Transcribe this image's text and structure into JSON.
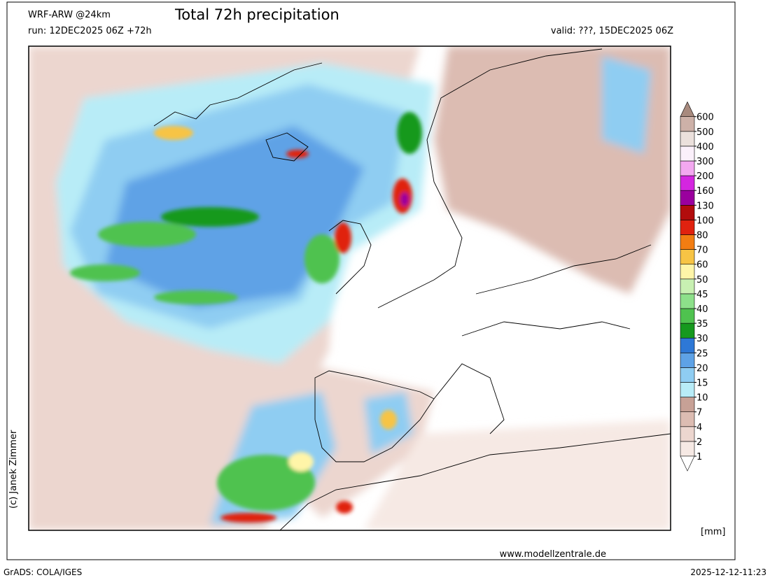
{
  "header": {
    "model": "WRF-ARW @24km",
    "title": "Total 72h precipitation",
    "run": "run: 12DEC2025 06Z +72h",
    "valid": "valid: ???, 15DEC2025 06Z"
  },
  "colorbar": {
    "levels": [
      1,
      2,
      4,
      7,
      10,
      15,
      20,
      25,
      30,
      35,
      40,
      45,
      50,
      60,
      70,
      80,
      100,
      130,
      160,
      200,
      300,
      400,
      500,
      600
    ],
    "colors": [
      "#ffffff",
      "#f6e9e4",
      "#ecd6cf",
      "#dcbcb2",
      "#c7a196",
      "#b8ecf7",
      "#8fcdf2",
      "#5ea2e6",
      "#2e78d6",
      "#16991e",
      "#4fc24f",
      "#8de08a",
      "#c8f0b2",
      "#fff5a8",
      "#f7c445",
      "#f27d12",
      "#e0220f",
      "#b20c0c",
      "#9a009e",
      "#d426e0",
      "#f3a8f0",
      "#fbf0fb",
      "#ebe0dc",
      "#cdb1a8",
      "#a88a7e"
    ],
    "unit": "[mm]"
  },
  "credit": "(c) Janek Zimmer",
  "website": "www.modellzentrale.de",
  "footer": {
    "left": "GrADS: COLA/IGES",
    "right": "2025-12-12-11:23"
  }
}
